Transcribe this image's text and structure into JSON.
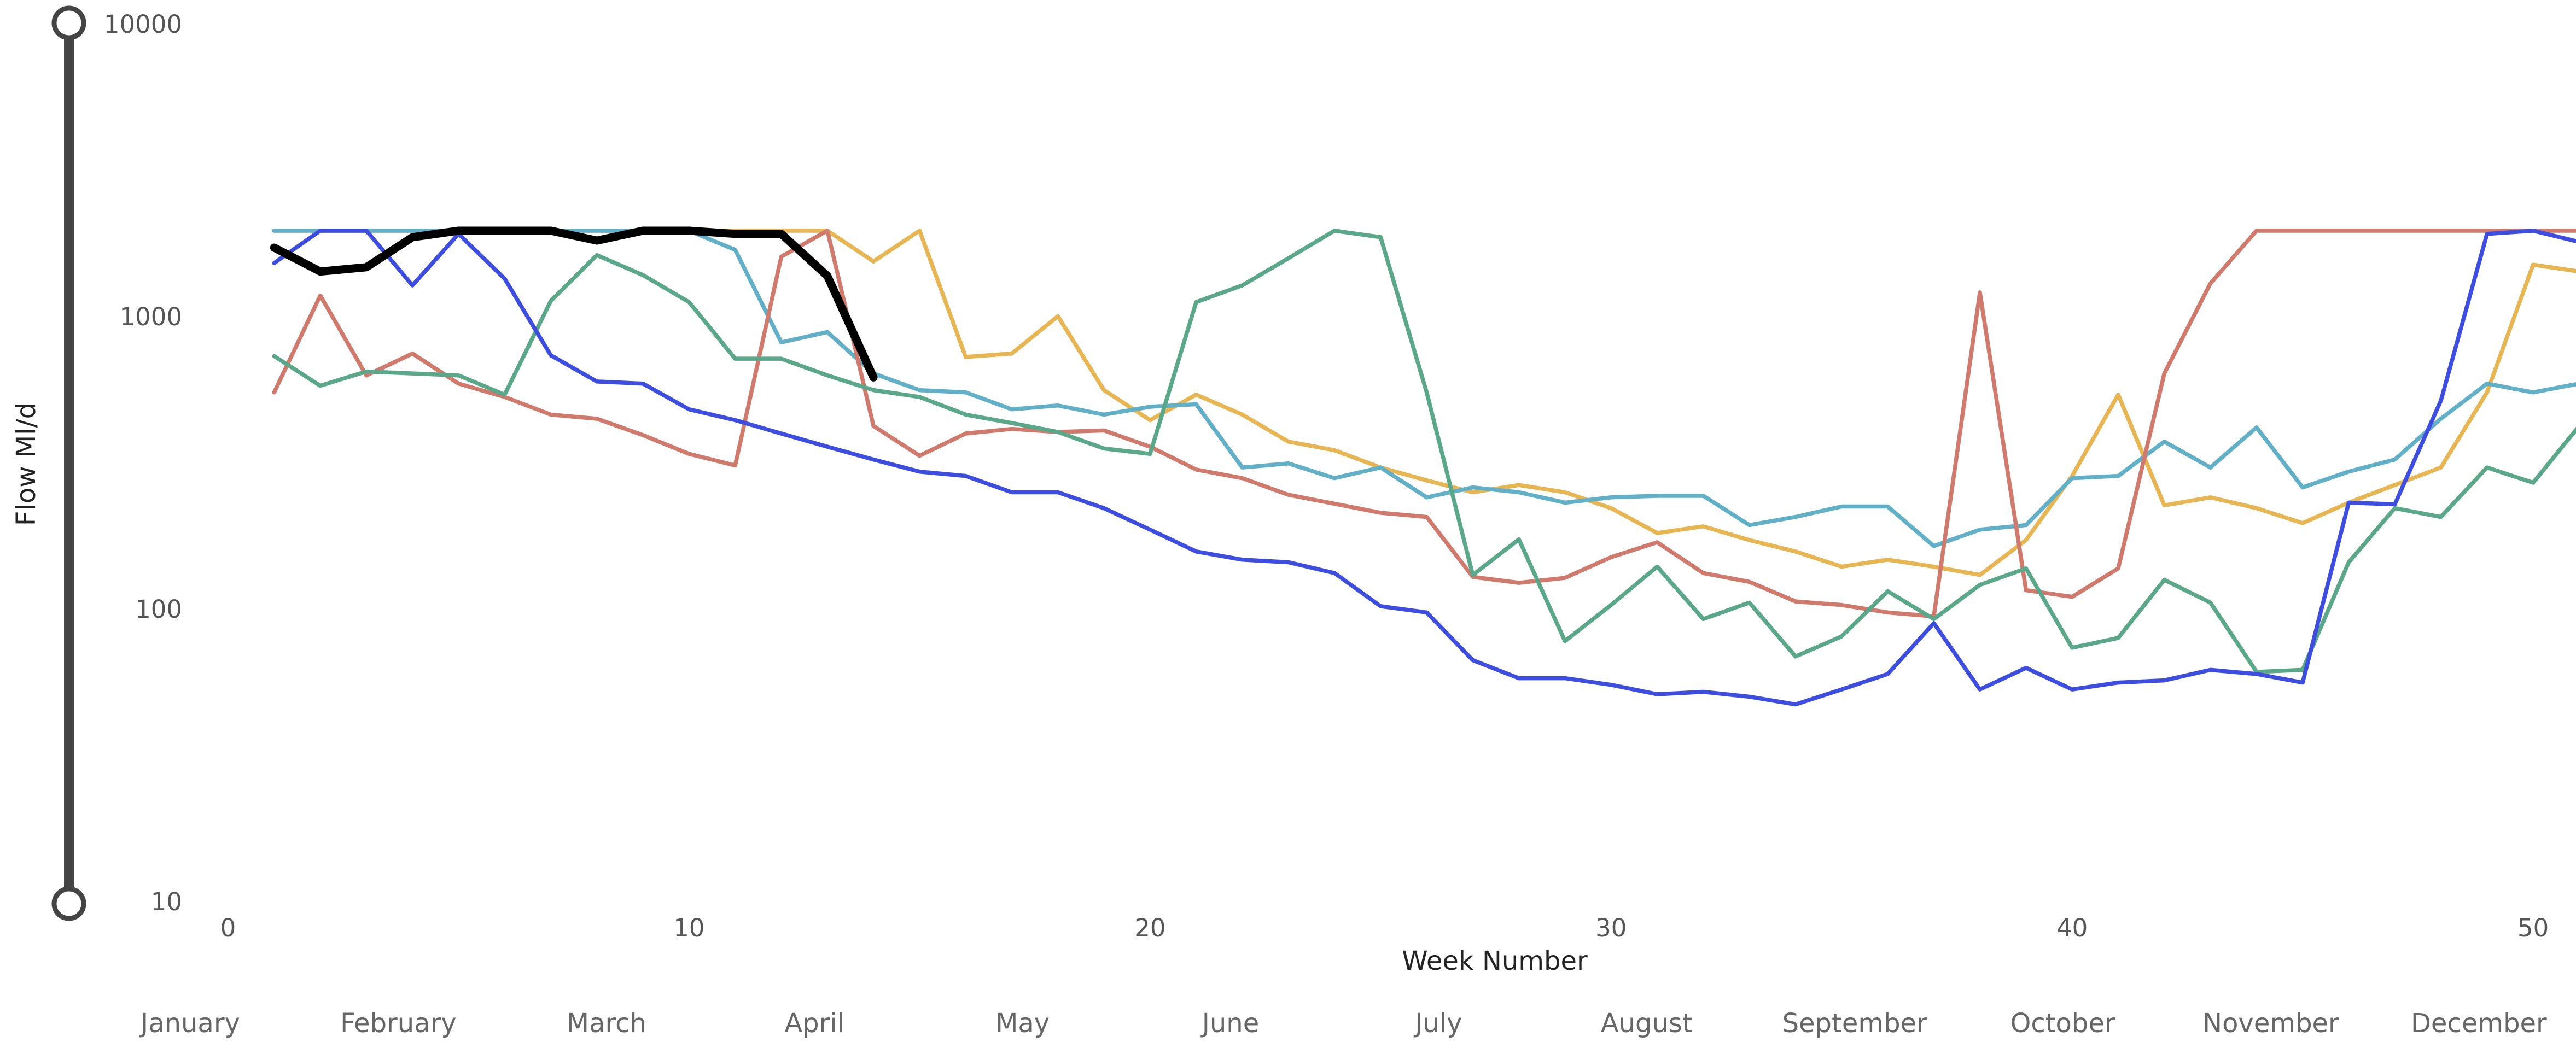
{
  "chart_data": {
    "type": "line",
    "x_label": "Week Number",
    "y_label": "Flow Ml/d",
    "log_y": true,
    "xlim": [
      0,
      50.93
    ],
    "xticks": [
      0,
      10,
      20,
      30,
      40,
      50
    ],
    "ylim": [
      10,
      10000
    ],
    "yticks": [
      10,
      100,
      1000,
      10000
    ],
    "months": [
      "January",
      "February",
      "March",
      "April",
      "May",
      "June",
      "July",
      "August",
      "September",
      "October",
      "November",
      "December"
    ],
    "x": [
      1,
      2,
      3,
      4,
      5,
      6,
      7,
      8,
      9,
      10,
      11,
      12,
      13,
      14,
      15,
      16,
      17,
      18,
      19,
      20,
      21,
      22,
      23,
      24,
      25,
      26,
      27,
      28,
      29,
      30,
      31,
      32,
      33,
      34,
      35,
      36,
      37,
      38,
      39,
      40,
      41,
      42,
      43,
      44,
      45,
      46,
      47,
      48,
      49,
      50,
      51
    ],
    "series": [
      {
        "color": "#e8b553",
        "width": 2.5,
        "values": [
          2000,
          2000,
          2000,
          2000,
          2000,
          2000,
          2000,
          2000,
          2000,
          2000,
          2000,
          2000,
          2000,
          1570,
          2000,
          740,
          760,
          1020,
          570,
          450,
          550,
          470,
          380,
          355,
          310,
          280,
          255,
          270,
          255,
          225,
          185,
          195,
          175,
          160,
          142,
          150,
          142,
          133,
          175,
          290,
          550,
          230,
          245,
          225,
          200,
          235,
          270,
          310,
          560,
          1530,
          1450
        ]
      },
      {
        "color": "#62b0c8",
        "width": 2.5,
        "values": [
          2000,
          2000,
          2000,
          2000,
          2000,
          2000,
          2000,
          2000,
          2000,
          2000,
          1720,
          830,
          900,
          650,
          570,
          560,
          490,
          505,
          470,
          500,
          510,
          310,
          320,
          285,
          310,
          245,
          265,
          255,
          235,
          245,
          248,
          248,
          197,
          210,
          228,
          228,
          167,
          190,
          197,
          285,
          290,
          380,
          310,
          425,
          265,
          300,
          330,
          455,
          600,
          560,
          600
        ]
      },
      {
        "color": "#cf7a6d",
        "width": 2.5,
        "values": [
          560,
          1200,
          640,
          760,
          600,
          540,
          470,
          455,
          400,
          345,
          315,
          1630,
          2000,
          430,
          340,
          405,
          420,
          410,
          415,
          365,
          305,
          285,
          250,
          233,
          217,
          210,
          131,
          125,
          130,
          153,
          172,
          135,
          126,
          108,
          105,
          99,
          96,
          1230,
          118,
          112,
          140,
          650,
          1320,
          2000,
          2000,
          2000,
          2000,
          2000,
          2000,
          2000,
          2000
        ]
      },
      {
        "color": "#5aa78a",
        "width": 2.5,
        "values": [
          745,
          590,
          660,
          650,
          640,
          550,
          1150,
          1650,
          1410,
          1140,
          730,
          730,
          640,
          570,
          540,
          470,
          440,
          410,
          360,
          345,
          1140,
          1300,
          1610,
          2000,
          1900,
          560,
          133,
          176,
          79,
          105,
          142,
          94,
          107,
          70,
          82,
          117,
          94,
          123,
          140,
          75,
          81,
          128,
          107,
          62,
          63,
          147,
          225,
          210,
          310,
          275,
          430
        ]
      },
      {
        "color": "#3d4de0",
        "width": 2.5,
        "values": [
          1550,
          2000,
          2000,
          1300,
          1950,
          1370,
          750,
          610,
          600,
          490,
          450,
          405,
          365,
          330,
          300,
          290,
          255,
          255,
          225,
          190,
          160,
          150,
          147,
          135,
          104,
          99,
          68,
          59,
          59,
          56,
          52,
          53,
          51,
          48,
          54,
          61,
          91,
          54,
          64,
          54,
          57,
          58,
          63,
          61,
          57,
          235,
          232,
          525,
          1950,
          2000,
          1830
        ]
      },
      {
        "color": "#000000",
        "width": 5,
        "values": [
          1750,
          1450,
          1500,
          1900,
          2000,
          2000,
          2000,
          1850,
          2000,
          2000,
          1950,
          1950,
          1400,
          630,
          null,
          null,
          null,
          null,
          null,
          null,
          null,
          null,
          null,
          null,
          null,
          null,
          null,
          null,
          null,
          null,
          null,
          null,
          null,
          null,
          null,
          null,
          null,
          null,
          null,
          null,
          null,
          null,
          null,
          null,
          null,
          null,
          null,
          null,
          null,
          null,
          null
        ]
      }
    ]
  }
}
